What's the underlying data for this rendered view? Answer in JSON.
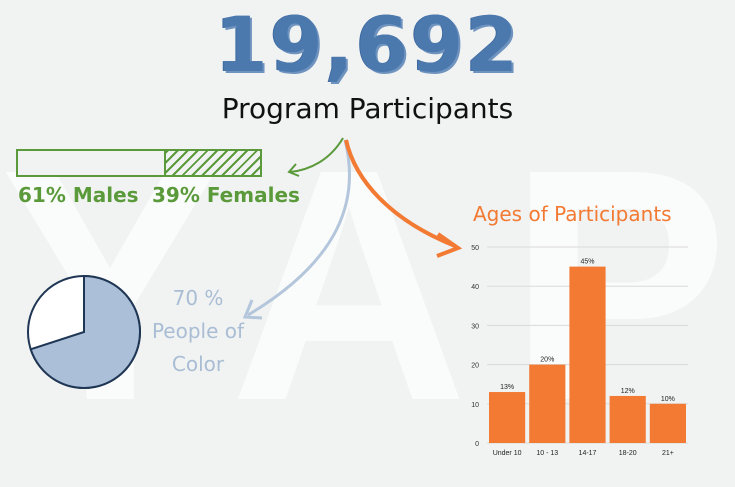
{
  "headline": {
    "number": "19,692",
    "subtitle": "Program Participants"
  },
  "watermark": "YAP",
  "gender": {
    "male_label": "61% Males",
    "female_label": "39% Females",
    "male_fraction": 0.61,
    "female_fraction": 0.39
  },
  "people_of_color": {
    "line1": "70 %",
    "line2": "People of",
    "line3": "Color",
    "fraction": 0.7
  },
  "colors": {
    "blue": "#4b78ad",
    "green": "#5a9a3a",
    "orange": "#f27a33",
    "pie_fill": "#abc0d8",
    "pie_stroke": "#1f3654",
    "light_blue": "#a9bdd4"
  },
  "chart_data": [
    {
      "type": "bar",
      "title": "Ages of Participants",
      "categories": [
        "Under 10",
        "10 - 13",
        "14-17",
        "18-20",
        "21+"
      ],
      "values": [
        13,
        20,
        45,
        12,
        10
      ],
      "data_labels": [
        "13%",
        "20%",
        "45%",
        "12%",
        "10%"
      ],
      "yticks": [
        "0",
        "10",
        "20",
        "30",
        "40",
        "50"
      ],
      "ylim": [
        0,
        50
      ],
      "grid": true,
      "xlabel": "",
      "ylabel": ""
    },
    {
      "type": "pie",
      "values": [
        70,
        30
      ],
      "labels": [
        "",
        ""
      ]
    }
  ]
}
